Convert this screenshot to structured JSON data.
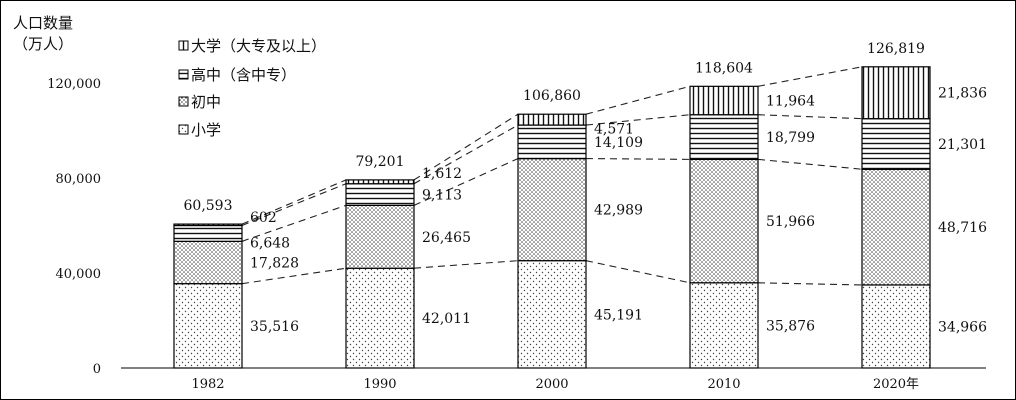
{
  "chart_data": {
    "type": "bar",
    "stacked": true,
    "y_title": [
      "人口数量",
      "（万人）"
    ],
    "categories": [
      "1982",
      "1990",
      "2000",
      "2010",
      "2020年"
    ],
    "ylim": [
      0,
      135000
    ],
    "y_ticks": [
      0,
      40000,
      80000,
      120000
    ],
    "y_tick_labels": [
      "0",
      "40,000",
      "80,000",
      "120,000"
    ],
    "series": [
      {
        "name": "小学",
        "values": [
          35516,
          42011,
          45191,
          35876,
          34966
        ],
        "labels": [
          "35,516",
          "42,011",
          "45,191",
          "35,876",
          "34,966"
        ],
        "pattern": "dots"
      },
      {
        "name": "初中",
        "values": [
          17828,
          26465,
          42989,
          51966,
          48716
        ],
        "labels": [
          "17,828",
          "26,465",
          "42,989",
          "51,966",
          "48,716"
        ],
        "pattern": "dense-dots"
      },
      {
        "name": "高中（含中专）",
        "values": [
          6648,
          9113,
          14109,
          18799,
          21301
        ],
        "labels": [
          "6,648",
          "9,113",
          "14,109",
          "18,799",
          "21,301"
        ],
        "pattern": "horizontal"
      },
      {
        "name": "大学（大专及以上）",
        "values": [
          602,
          1612,
          4571,
          11964,
          21836
        ],
        "labels": [
          "602",
          "1,612",
          "4,571",
          "11,964",
          "21,836"
        ],
        "pattern": "vertical"
      }
    ],
    "totals": [
      60593,
      79201,
      106860,
      118604,
      126819
    ],
    "total_labels": [
      "60,593",
      "79,201",
      "106,860",
      "118,604",
      "126,819"
    ],
    "legend_order": [
      "大学（大专及以上）",
      "高中（含中专）",
      "初中",
      "小学"
    ],
    "legend_position": "top-left",
    "connector_lines": "dashed",
    "grid": false
  }
}
